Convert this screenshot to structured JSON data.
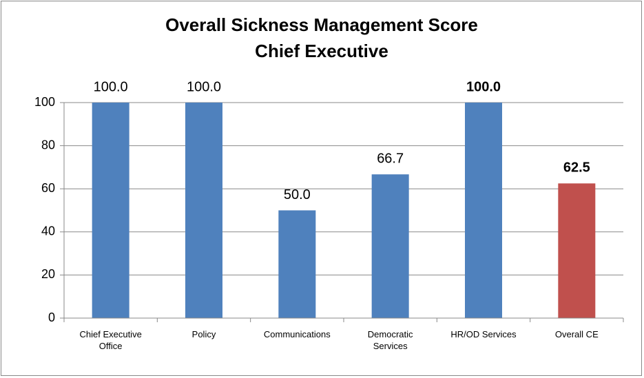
{
  "chart_data": {
    "type": "bar",
    "title": "Overall Sickness Management Score",
    "subtitle": "Chief Executive",
    "categories": [
      "Chief Executive Office",
      "Policy",
      "Communications",
      "Democratic Services",
      "HR/OD Services",
      "Overall CE"
    ],
    "values": [
      100,
      100,
      50,
      66.7,
      100,
      62.5
    ],
    "value_labels": [
      "100.0",
      "100.0",
      "50.0",
      "66.7",
      "100.0",
      "62.5"
    ],
    "value_label_bold": [
      false,
      false,
      false,
      false,
      true,
      true
    ],
    "colors": [
      "#4f81bd",
      "#4f81bd",
      "#4f81bd",
      "#4f81bd",
      "#4f81bd",
      "#c0504d"
    ],
    "ylim": [
      0,
      100
    ],
    "yticks": [
      0,
      20,
      40,
      60,
      80,
      100
    ],
    "grid": true
  }
}
